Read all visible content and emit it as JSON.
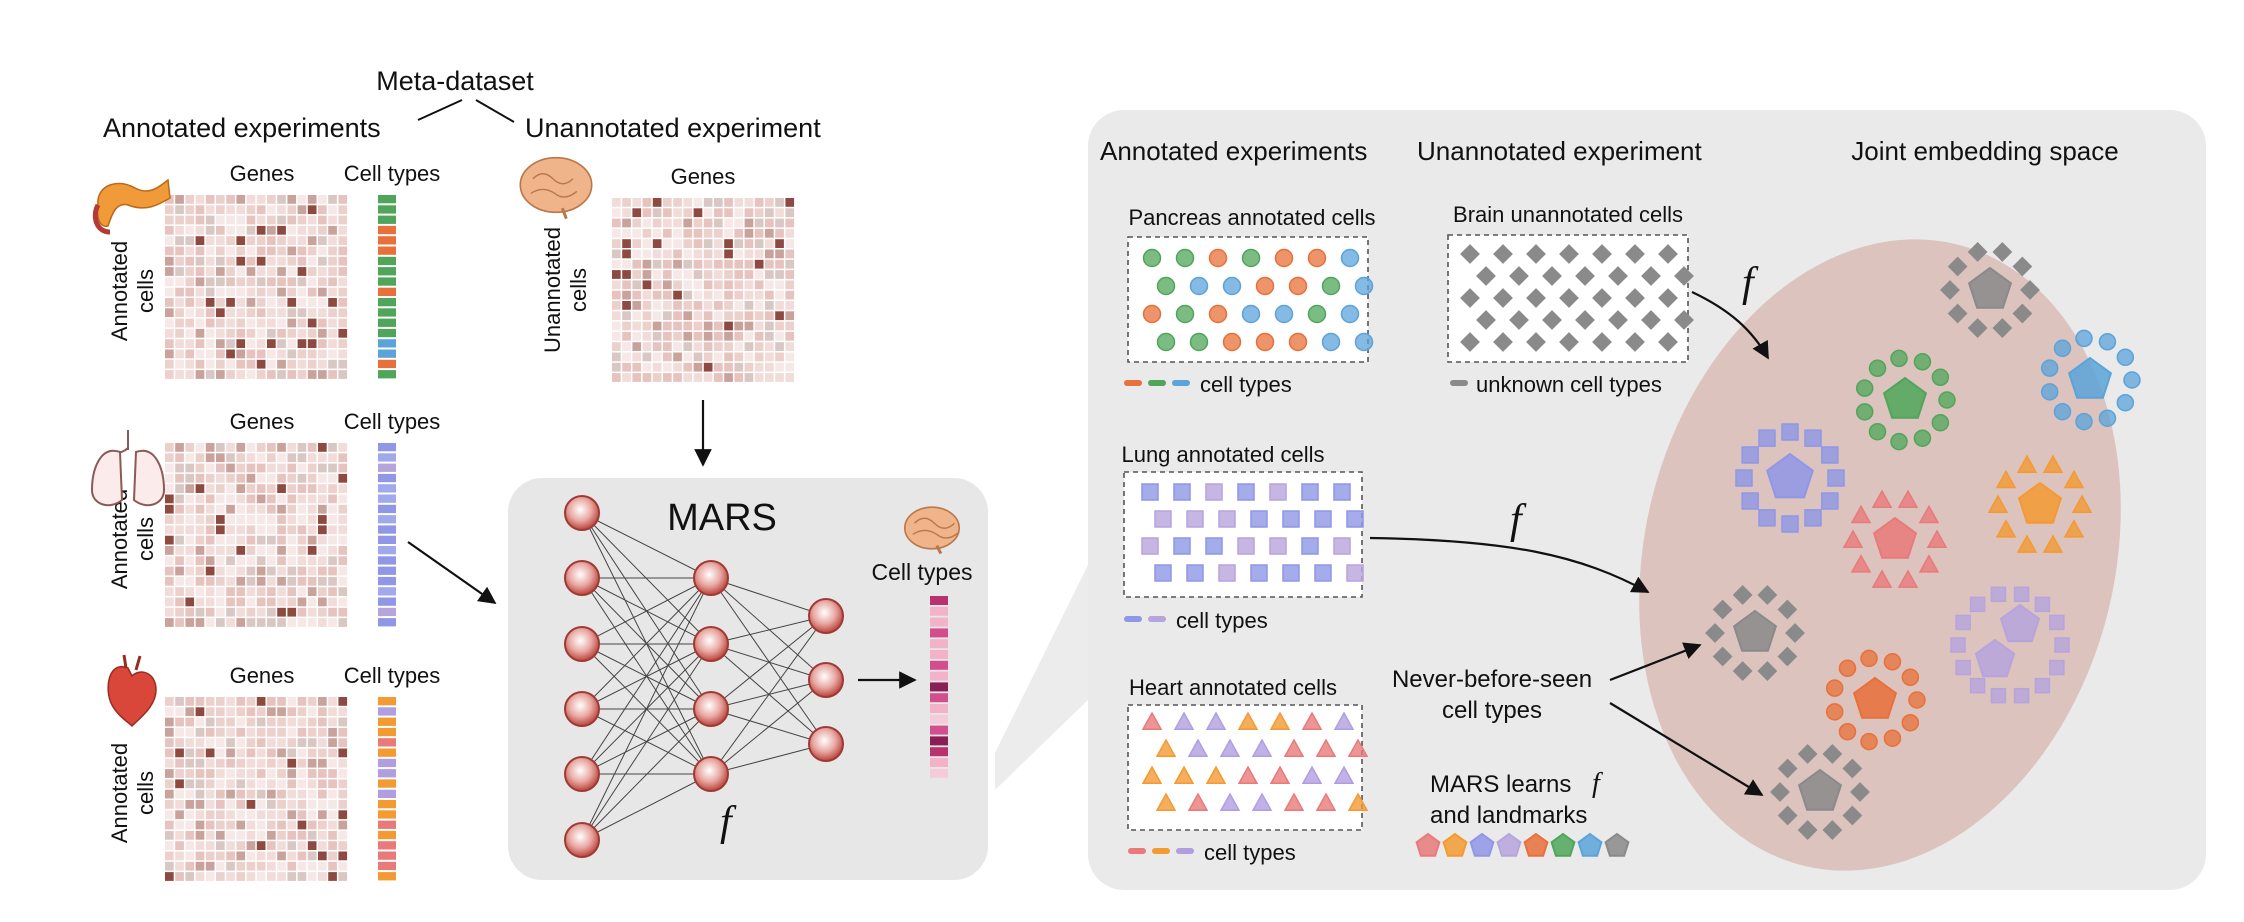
{
  "meta_title": "Meta-dataset",
  "left": {
    "annotated_header": "Annotated experiments",
    "unannotated_header": "Unannotated experiment",
    "genes_label": "Genes",
    "cell_types_label": "Cell types",
    "annotated_cells_label": [
      "Annotated",
      "cells"
    ],
    "unannotated_cells_label": [
      "Unannotated",
      "cells"
    ],
    "organs": [
      {
        "name": "pancreas-icon",
        "strip_colors": [
          "#5ba3d9",
          "#e8703a",
          "#4fa65a"
        ]
      },
      {
        "name": "lung-icon",
        "strip_colors": [
          "#8f97e6",
          "#b6a4dc",
          "#9fa9ec"
        ]
      },
      {
        "name": "heart-icon",
        "strip_colors": [
          "#f39a33",
          "#e87a7a",
          "#b09ee0"
        ]
      }
    ],
    "brain_icon": "brain-icon"
  },
  "model": {
    "name": "MARS",
    "function_symbol": "f",
    "output_label": "Cell types",
    "output_colors": [
      "#b8326e",
      "#f2b3c8",
      "#d44d8c",
      "#8a1f55",
      "#f6cbd9"
    ]
  },
  "right": {
    "annotated_header": "Annotated experiments",
    "unannotated_header": "Unannotated experiment",
    "embedding_header": "Joint embedding space",
    "pancreas_title": "Pancreas annotated cells",
    "brain_title": "Brain unannotated cells",
    "lung_title": "Lung annotated cells",
    "heart_title": "Heart annotated cells",
    "cell_types_label": "cell types",
    "unknown_label": "unknown cell types",
    "function_symbol": "f",
    "never_seen_label": [
      "Never-before-seen",
      "cell types"
    ],
    "learns_label": [
      "MARS learns",
      "and landmarks"
    ],
    "pancreas_colors": [
      "#e8703a",
      "#4fa65a",
      "#5ba3d9"
    ],
    "lung_colors": [
      "#8f97e6",
      "#b6a4dc"
    ],
    "heart_colors": [
      "#e87a7a",
      "#f39a33",
      "#b09ee0"
    ],
    "unknown_color": "#8a8a8a",
    "landmark_colors": [
      "#e87a7a",
      "#f39a33",
      "#8f97e6",
      "#b6a4dc",
      "#e8703a",
      "#4fa65a",
      "#5ba3d9",
      "#8a8a8a"
    ]
  },
  "colors": {
    "panel_bg": "#e9e9e9",
    "embedding_bg": "#d8c1bb",
    "neuron_fill": "#c0524a",
    "arrow": "#111111"
  }
}
